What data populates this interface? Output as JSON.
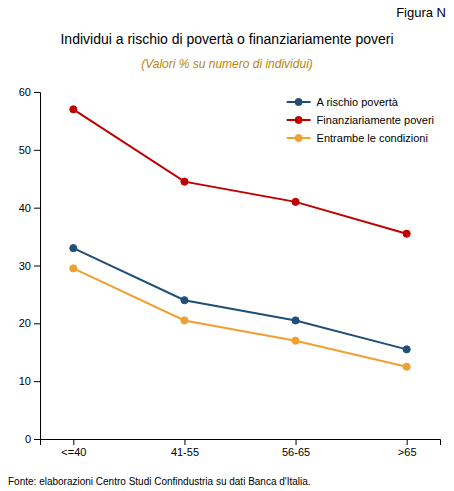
{
  "chart_data": {
    "type": "line",
    "title": "Individui a rischio di povertà o finanziariamente poveri",
    "subtitle": "(Valori % su numero di individui)",
    "annotations": [
      "Figura N",
      "Fonte: elaborazioni Centro Studi Confindustria su dati Banca d'Italia."
    ],
    "categories": [
      "<=40",
      "41-55",
      "56-65",
      ">65"
    ],
    "series": [
      {
        "name": "A rischio povertà",
        "color": "#1f4e79",
        "marker": "circle",
        "values": [
          33,
          24,
          20.5,
          15.5
        ]
      },
      {
        "name": "Finanziariamente poveri",
        "color": "#c00000",
        "marker": "circle",
        "values": [
          57,
          44.5,
          41,
          35.5
        ]
      },
      {
        "name": "Entrambe le condizioni",
        "color": "#f0a030",
        "marker": "circle",
        "values": [
          29.5,
          20.5,
          17,
          12.5
        ]
      }
    ],
    "ylim": [
      0,
      60
    ],
    "yticks": [
      0,
      10,
      20,
      30,
      40,
      50,
      60
    ],
    "grid": false,
    "legend": "upper right"
  }
}
